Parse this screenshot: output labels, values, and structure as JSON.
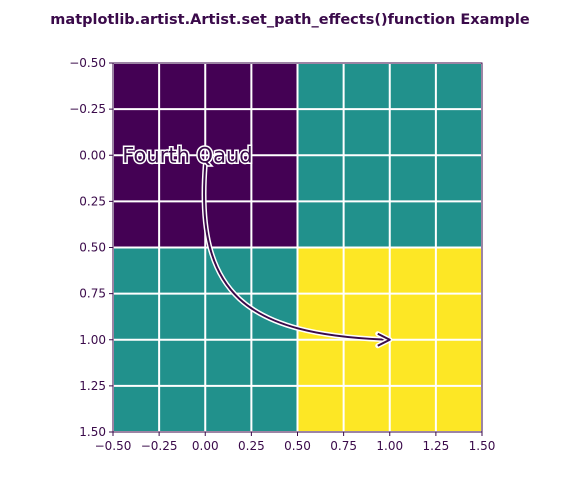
{
  "title": "matplotlib.artist.Artist.set_path_effects()function Example",
  "chart_data": {
    "type": "heatmap",
    "xlim": [
      -0.5,
      1.5
    ],
    "ylim": [
      1.5,
      -0.5
    ],
    "y_inverted": true,
    "grid": true,
    "xticks": [
      "−0.50",
      "−0.25",
      "0.00",
      "0.25",
      "0.50",
      "0.75",
      "1.00",
      "1.25",
      "1.50"
    ],
    "yticks": [
      "−0.50",
      "−0.25",
      "0.00",
      "0.25",
      "0.50",
      "0.75",
      "1.00",
      "1.25",
      "1.50"
    ],
    "xtick_values": [
      -0.5,
      -0.25,
      0,
      0.25,
      0.5,
      0.75,
      1.0,
      1.25,
      1.5
    ],
    "ytick_values": [
      -0.5,
      -0.25,
      0,
      0.25,
      0.5,
      0.75,
      1.0,
      1.25,
      1.5
    ],
    "values": [
      [
        0,
        1
      ],
      [
        1,
        2
      ]
    ],
    "colormap": "viridis",
    "colors": {
      "low": "#440154",
      "mid": "#21918c",
      "high": "#fde725"
    },
    "annotation": {
      "text": "Fourth Qaud",
      "text_x": -0.45,
      "text_y": 0.0,
      "arrow_tip_x": 1.0,
      "arrow_tip_y": 1.0
    }
  }
}
